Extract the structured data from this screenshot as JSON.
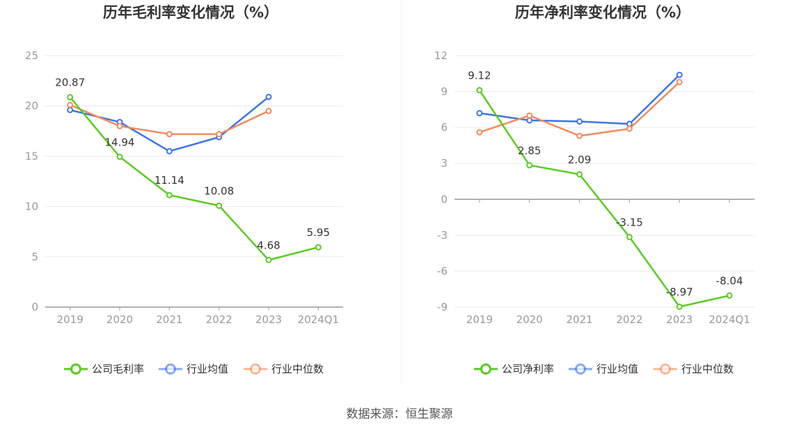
{
  "charts": [
    {
      "title": "历年毛利率变化情况（%）",
      "chart_data": {
        "type": "line",
        "categories": [
          "2019",
          "2020",
          "2021",
          "2022",
          "2023",
          "2024Q1"
        ],
        "ylim": [
          0,
          25
        ],
        "yticks": [
          0,
          5,
          10,
          15,
          20,
          25
        ],
        "grid": true,
        "legend_position": "bottom",
        "series": [
          {
            "name": "公司毛利率",
            "color": "#5cc826",
            "values": [
              20.87,
              14.94,
              11.14,
              10.08,
              4.68,
              5.95
            ],
            "labels": [
              "20.87",
              "14.94",
              "11.14",
              "10.08",
              "4.68",
              "5.95"
            ]
          },
          {
            "name": "行业均值",
            "color": "#3d74e0",
            "values": [
              19.6,
              18.4,
              15.5,
              16.9,
              20.9,
              null
            ]
          },
          {
            "name": "行业中位数",
            "color": "#f28a5e",
            "values": [
              20.1,
              18.0,
              17.2,
              17.2,
              19.5,
              null
            ]
          }
        ]
      }
    },
    {
      "title": "历年净利率变化情况（%）",
      "chart_data": {
        "type": "line",
        "categories": [
          "2019",
          "2020",
          "2021",
          "2022",
          "2023",
          "2024Q1"
        ],
        "ylim": [
          -9,
          12
        ],
        "yticks": [
          -9,
          -6,
          -3,
          0,
          3,
          6,
          9,
          12
        ],
        "grid": true,
        "legend_position": "bottom",
        "series": [
          {
            "name": "公司净利率",
            "color": "#5cc826",
            "values": [
              9.12,
              2.85,
              2.09,
              -3.15,
              -8.97,
              -8.04
            ],
            "labels": [
              "9.12",
              "2.85",
              "2.09",
              "-3.15",
              "-8.97",
              "-8.04"
            ]
          },
          {
            "name": "行业均值",
            "color": "#3d74e0",
            "values": [
              7.2,
              6.6,
              6.5,
              6.3,
              10.4,
              null
            ]
          },
          {
            "name": "行业中位数",
            "color": "#f28a5e",
            "values": [
              5.6,
              7.0,
              5.3,
              5.9,
              9.8,
              null
            ]
          }
        ]
      }
    }
  ],
  "source": "数据来源：恒生聚源"
}
